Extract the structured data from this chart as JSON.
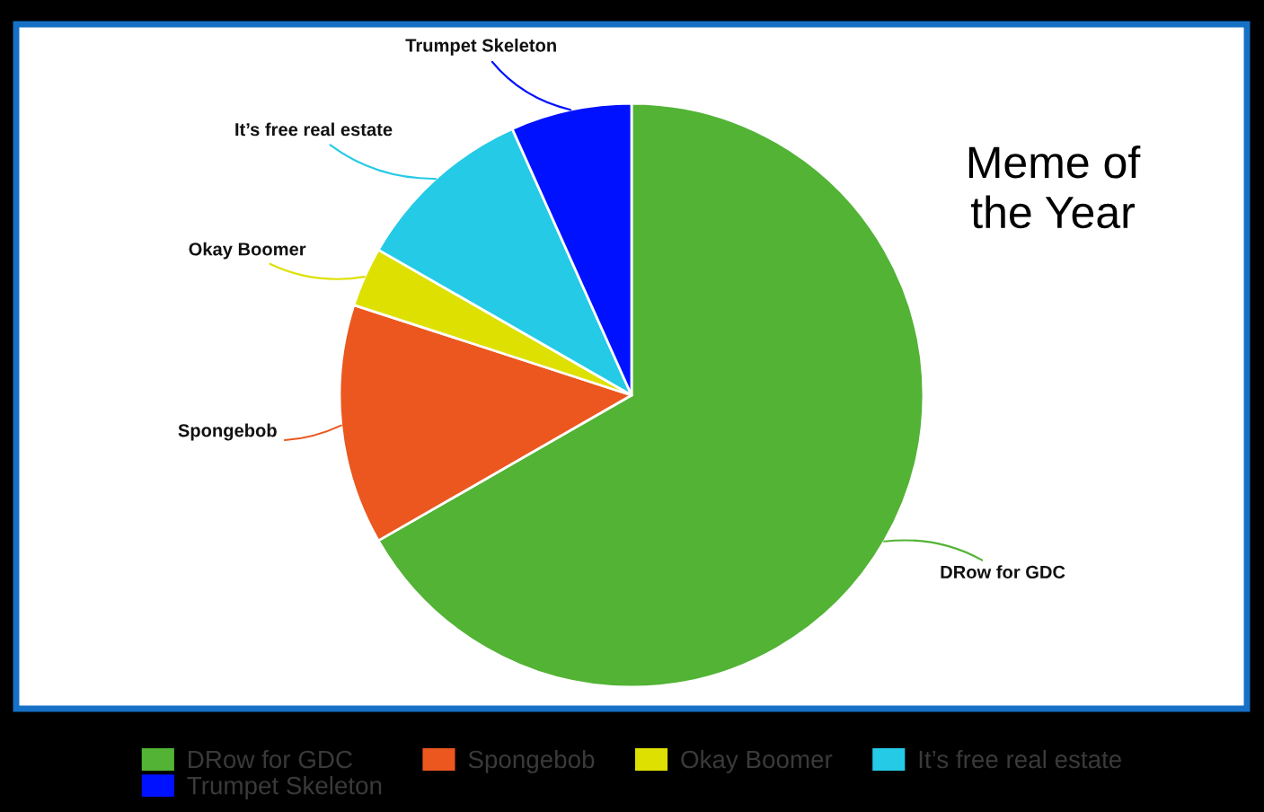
{
  "chart_data": {
    "type": "pie",
    "title": "Meme of\nthe Year",
    "categories": [
      "DRow for GDC",
      "Spongebob",
      "Okay Boomer",
      "It’s free real estate",
      "Trumpet Skeleton"
    ],
    "values": [
      66.7,
      13.3,
      3.3,
      10.0,
      6.7
    ],
    "colors": [
      "#52b335",
      "#eb571e",
      "#dde000",
      "#24cae6",
      "#0011ff"
    ],
    "legend": "bottom"
  }
}
